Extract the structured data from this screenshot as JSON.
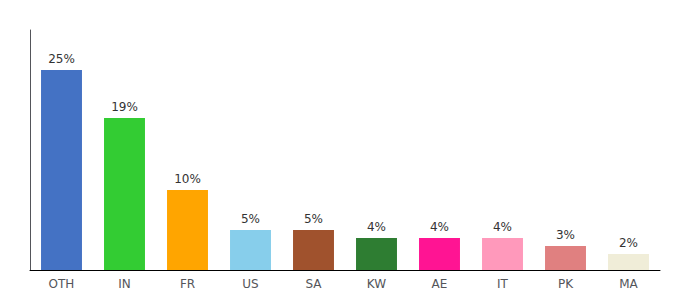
{
  "chart_data": {
    "type": "bar",
    "categories": [
      "OTH",
      "IN",
      "FR",
      "US",
      "SA",
      "KW",
      "AE",
      "IT",
      "PK",
      "MA"
    ],
    "values": [
      25,
      19,
      10,
      5,
      5,
      4,
      4,
      4,
      3,
      2
    ],
    "value_labels": [
      "25%",
      "19%",
      "10%",
      "5%",
      "5%",
      "4%",
      "4%",
      "4%",
      "3%",
      "2%"
    ],
    "colors": [
      "#4472C4",
      "#33CC33",
      "#FFA500",
      "#87CEEB",
      "#A0522D",
      "#2E7D32",
      "#FF1493",
      "#FF99BB",
      "#E08080",
      "#F0EDD8"
    ],
    "ylim": [
      0,
      30
    ],
    "grid": false,
    "data_labels": true,
    "tick_labels": "x"
  }
}
